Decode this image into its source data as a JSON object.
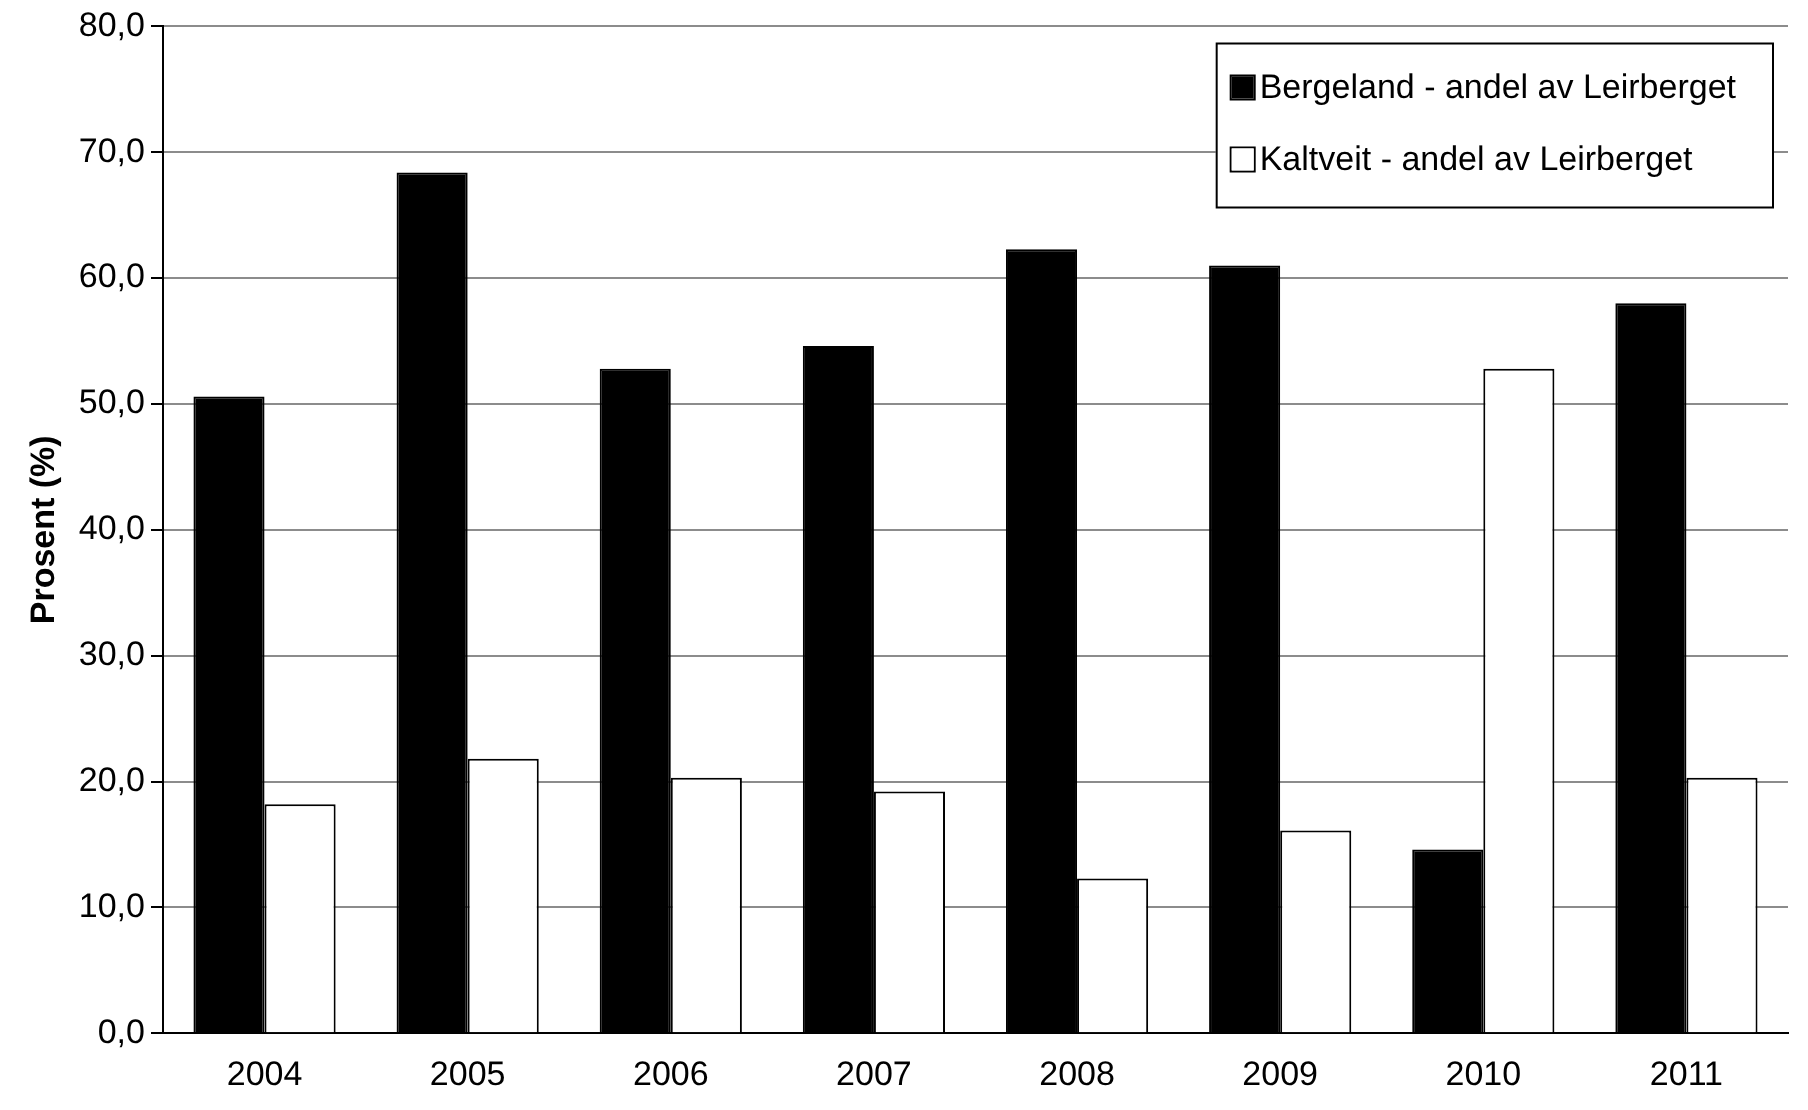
{
  "chart_data": {
    "type": "bar",
    "ylabel": "Prosent (%)",
    "categories": [
      "2004",
      "2005",
      "2006",
      "2007",
      "2008",
      "2009",
      "2010",
      "2011"
    ],
    "series": [
      {
        "name": "Bergeland - andel av Leirberget",
        "color": "#000000",
        "values": [
          50.6,
          68.4,
          52.8,
          54.6,
          62.3,
          61.0,
          14.6,
          58.0
        ]
      },
      {
        "name": "Kaltveit - andel av Leirberget",
        "color": "#ffffff",
        "values": [
          18.2,
          21.8,
          20.3,
          19.2,
          12.3,
          16.1,
          52.8,
          20.3
        ]
      }
    ],
    "ylim": [
      0,
      80
    ],
    "yticks": [
      {
        "value": 0,
        "label": "0,0"
      },
      {
        "value": 10,
        "label": "10,0"
      },
      {
        "value": 20,
        "label": "20,0"
      },
      {
        "value": 30,
        "label": "30,0"
      },
      {
        "value": 40,
        "label": "40,0"
      },
      {
        "value": 50,
        "label": "50,0"
      },
      {
        "value": 60,
        "label": "60,0"
      },
      {
        "value": 70,
        "label": "70,0"
      },
      {
        "value": 80,
        "label": "80,0"
      }
    ],
    "grid": "y",
    "legend": "top right"
  }
}
